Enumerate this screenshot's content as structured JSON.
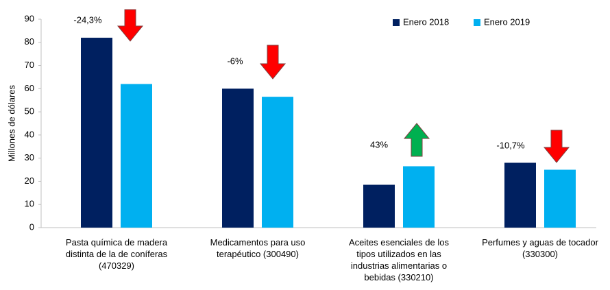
{
  "chart_data": {
    "type": "bar",
    "y_label": "Millones de dólares",
    "categories": [
      "Pasta química de madera distinta de la de coníferas (470329)",
      "Medicamentos para uso terapéutico (300490)",
      "Aceites esenciales de los tipos utilizados en las industrias alimentarias o bebidas (330210)",
      "Perfumes y aguas de tocador (330300)"
    ],
    "series": [
      {
        "name": "Enero 2018",
        "color": "#002060",
        "values": [
          82,
          60,
          18.5,
          28
        ]
      },
      {
        "name": "Enero 2019",
        "color": "#00b0f0",
        "values": [
          62,
          56.5,
          26.5,
          25
        ]
      }
    ],
    "annotations": [
      {
        "text": "-24,3%",
        "direction": "down",
        "color": "#ff0000"
      },
      {
        "text": "-6%",
        "direction": "down",
        "color": "#ff0000"
      },
      {
        "text": "43%",
        "direction": "up",
        "color": "#00b050"
      },
      {
        "text": "-10,7%",
        "direction": "down",
        "color": "#ff0000"
      }
    ],
    "ylim": [
      0,
      90
    ],
    "yticks": [
      0,
      10,
      20,
      30,
      40,
      50,
      60,
      70,
      80,
      90
    ],
    "legend": "top-right",
    "grid": false
  }
}
